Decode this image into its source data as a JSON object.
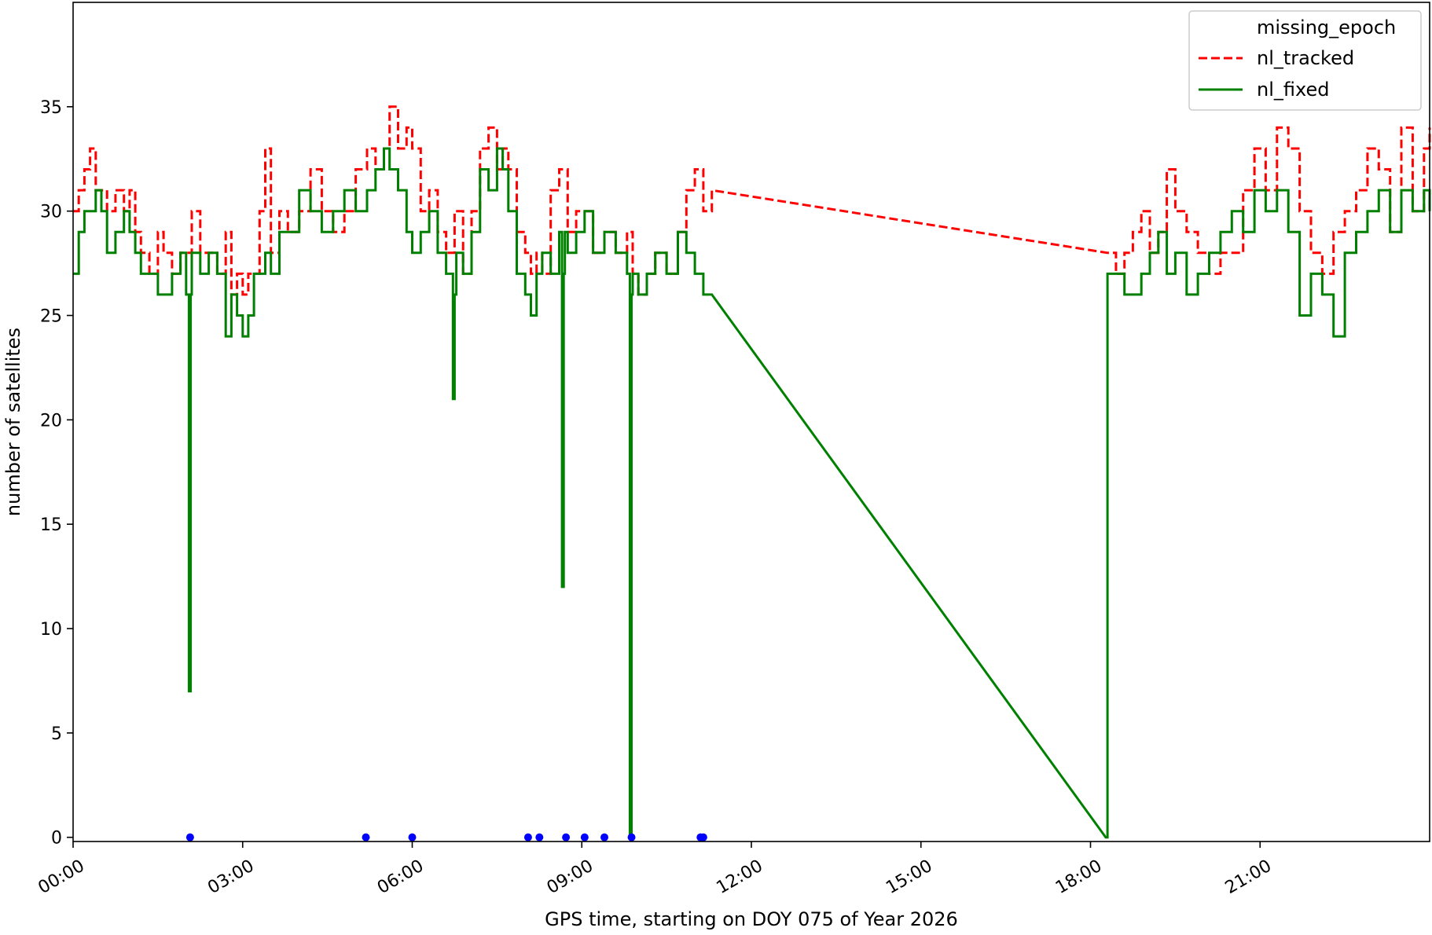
{
  "chart_data": {
    "type": "line",
    "title": "",
    "xlabel": "GPS time, starting on DOY 075 of Year 2026",
    "ylabel": "number of satellites",
    "x_unit": "hours",
    "xlim": [
      0,
      24
    ],
    "ylim": [
      -0.2,
      40
    ],
    "x_ticks": [
      0,
      3,
      6,
      9,
      12,
      15,
      18,
      21
    ],
    "x_tick_labels": [
      "00:00",
      "03:00",
      "06:00",
      "09:00",
      "12:00",
      "15:00",
      "18:00",
      "21:00"
    ],
    "y_ticks": [
      0,
      5,
      10,
      15,
      20,
      25,
      30,
      35
    ],
    "y_tick_labels": [
      "0",
      "5",
      "10",
      "15",
      "20",
      "25",
      "30",
      "35"
    ],
    "grid": false,
    "legend_position": "top-right",
    "legend": [
      "missing_epoch",
      "nl_tracked",
      "nl_fixed"
    ],
    "series": [
      {
        "name": "missing_epoch",
        "style": "markers",
        "color": "#0000ff",
        "x": [
          2.07,
          5.18,
          6.0,
          8.05,
          8.25,
          8.72,
          9.05,
          9.4,
          9.88,
          11.1,
          11.15
        ],
        "y": [
          0,
          0,
          0,
          0,
          0,
          0,
          0,
          0,
          0,
          0,
          0
        ]
      },
      {
        "name": "nl_tracked",
        "style": "dashed",
        "color": "#ff0000",
        "x": [
          0.0,
          0.1,
          0.2,
          0.3,
          0.4,
          0.5,
          0.6,
          0.75,
          0.9,
          1.0,
          1.1,
          1.2,
          1.35,
          1.5,
          1.6,
          1.75,
          1.9,
          2.0,
          2.1,
          2.25,
          2.4,
          2.55,
          2.7,
          2.8,
          2.9,
          3.0,
          3.1,
          3.2,
          3.3,
          3.4,
          3.5,
          3.65,
          3.8,
          4.0,
          4.2,
          4.4,
          4.6,
          4.8,
          5.0,
          5.2,
          5.35,
          5.5,
          5.6,
          5.75,
          5.9,
          6.0,
          6.15,
          6.3,
          6.45,
          6.6,
          6.75,
          6.9,
          7.05,
          7.2,
          7.35,
          7.5,
          7.6,
          7.7,
          7.85,
          8.0,
          8.1,
          8.2,
          8.3,
          8.45,
          8.6,
          8.75,
          8.9,
          9.05,
          9.2,
          9.4,
          9.6,
          9.8,
          9.9,
          10.0,
          10.15,
          10.3,
          10.5,
          10.7,
          10.85,
          11.0,
          11.15,
          11.3,
          18.3,
          18.45,
          18.6,
          18.75,
          18.9,
          19.05,
          19.2,
          19.35,
          19.5,
          19.7,
          19.9,
          20.1,
          20.3,
          20.5,
          20.7,
          20.9,
          21.1,
          21.3,
          21.5,
          21.7,
          21.9,
          22.1,
          22.3,
          22.5,
          22.7,
          22.9,
          23.1,
          23.3,
          23.5,
          23.7,
          23.9,
          24.0
        ],
        "y": [
          30,
          31,
          32,
          33,
          31,
          31,
          30,
          31,
          30,
          31,
          29,
          28,
          27,
          29,
          28,
          27,
          28,
          28,
          30,
          28,
          28,
          27,
          29,
          26,
          27,
          26,
          27,
          27,
          30,
          33,
          28,
          30,
          29,
          30,
          32,
          30,
          29,
          30,
          32,
          33,
          32,
          33,
          35,
          33,
          34,
          33,
          30,
          31,
          29,
          28,
          30,
          27,
          30,
          33,
          34,
          32,
          33,
          32,
          29,
          28,
          27,
          28,
          27,
          31,
          32,
          29,
          30,
          30,
          28,
          29,
          28,
          29,
          27,
          26,
          27,
          28,
          27,
          29,
          31,
          32,
          30,
          31,
          28,
          27,
          28,
          29,
          30,
          28,
          29,
          32,
          30,
          29,
          28,
          27,
          28,
          28,
          31,
          33,
          31,
          34,
          33,
          30,
          28,
          27,
          29,
          30,
          31,
          33,
          32,
          29,
          34,
          30,
          33,
          34
        ]
      },
      {
        "name": "nl_fixed",
        "style": "solid",
        "color": "#008000",
        "x": [
          0.0,
          0.1,
          0.2,
          0.3,
          0.4,
          0.5,
          0.6,
          0.75,
          0.9,
          1.0,
          1.1,
          1.2,
          1.35,
          1.5,
          1.6,
          1.75,
          1.9,
          2.0,
          2.05,
          2.08,
          2.1,
          2.25,
          2.4,
          2.55,
          2.7,
          2.8,
          2.9,
          3.0,
          3.1,
          3.2,
          3.3,
          3.4,
          3.5,
          3.65,
          3.8,
          4.0,
          4.2,
          4.4,
          4.6,
          4.8,
          5.0,
          5.2,
          5.35,
          5.5,
          5.6,
          5.75,
          5.9,
          6.0,
          6.15,
          6.3,
          6.45,
          6.6,
          6.72,
          6.75,
          6.78,
          6.9,
          7.05,
          7.2,
          7.35,
          7.5,
          7.6,
          7.7,
          7.85,
          8.0,
          8.1,
          8.2,
          8.3,
          8.45,
          8.6,
          8.65,
          8.68,
          8.7,
          8.75,
          8.9,
          9.05,
          9.2,
          9.4,
          9.6,
          9.8,
          9.85,
          9.88,
          9.9,
          10.0,
          10.15,
          10.3,
          10.5,
          10.7,
          10.85,
          11.0,
          11.15,
          11.3,
          18.27,
          18.3,
          18.45,
          18.6,
          18.75,
          18.9,
          19.05,
          19.2,
          19.35,
          19.5,
          19.7,
          19.9,
          20.1,
          20.3,
          20.5,
          20.7,
          20.9,
          21.1,
          21.3,
          21.5,
          21.7,
          21.9,
          22.1,
          22.3,
          22.5,
          22.7,
          22.9,
          23.1,
          23.3,
          23.5,
          23.7,
          23.9,
          24.0
        ],
        "y": [
          27,
          29,
          30,
          30,
          31,
          30,
          28,
          29,
          30,
          29,
          28,
          27,
          27,
          26,
          26,
          27,
          28,
          26,
          7,
          26,
          28,
          27,
          28,
          27,
          24,
          26,
          25,
          24,
          25,
          27,
          27,
          28,
          27,
          29,
          29,
          31,
          30,
          29,
          30,
          31,
          30,
          31,
          32,
          33,
          32,
          31,
          29,
          28,
          29,
          30,
          28,
          27,
          21,
          26,
          28,
          27,
          29,
          32,
          31,
          33,
          32,
          30,
          27,
          26,
          25,
          27,
          28,
          27,
          29,
          12,
          27,
          29,
          28,
          29,
          30,
          28,
          29,
          28,
          27,
          0,
          26,
          27,
          26,
          27,
          28,
          27,
          29,
          28,
          27,
          26,
          26,
          0,
          27,
          27,
          26,
          26,
          27,
          28,
          29,
          27,
          28,
          26,
          27,
          28,
          29,
          30,
          29,
          31,
          30,
          31,
          29,
          25,
          27,
          26,
          24,
          28,
          29,
          30,
          31,
          29,
          31,
          30,
          31,
          30
        ]
      }
    ]
  }
}
